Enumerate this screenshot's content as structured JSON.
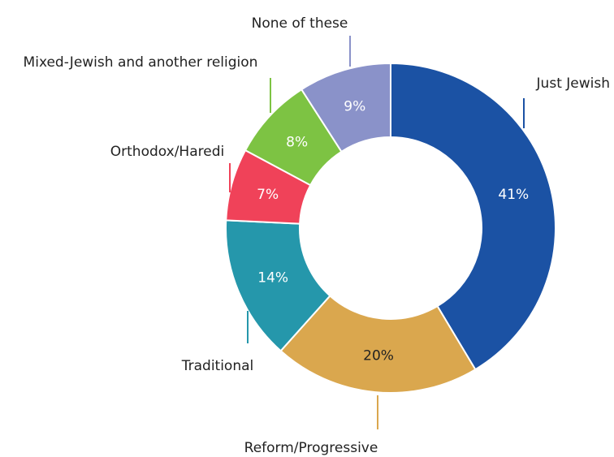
{
  "chart_data": {
    "type": "donut",
    "title": "",
    "categories": [
      "Just Jewish",
      "Reform/Progressive",
      "Traditional",
      "Orthodox/Haredi",
      "Mixed-Jewish and another religion",
      "None of these"
    ],
    "values": [
      41,
      20,
      14,
      7,
      8,
      9
    ],
    "value_labels": [
      "41%",
      "20%",
      "14%",
      "7%",
      "8%",
      "9%"
    ],
    "colors": [
      "#1b52a4",
      "#daa74e",
      "#2597ab",
      "#f04259",
      "#7dc343",
      "#8a92c9"
    ],
    "value_label_colors": [
      "#ffffff",
      "#222222",
      "#ffffff",
      "#ffffff",
      "#ffffff",
      "#ffffff"
    ],
    "legend": "none"
  }
}
